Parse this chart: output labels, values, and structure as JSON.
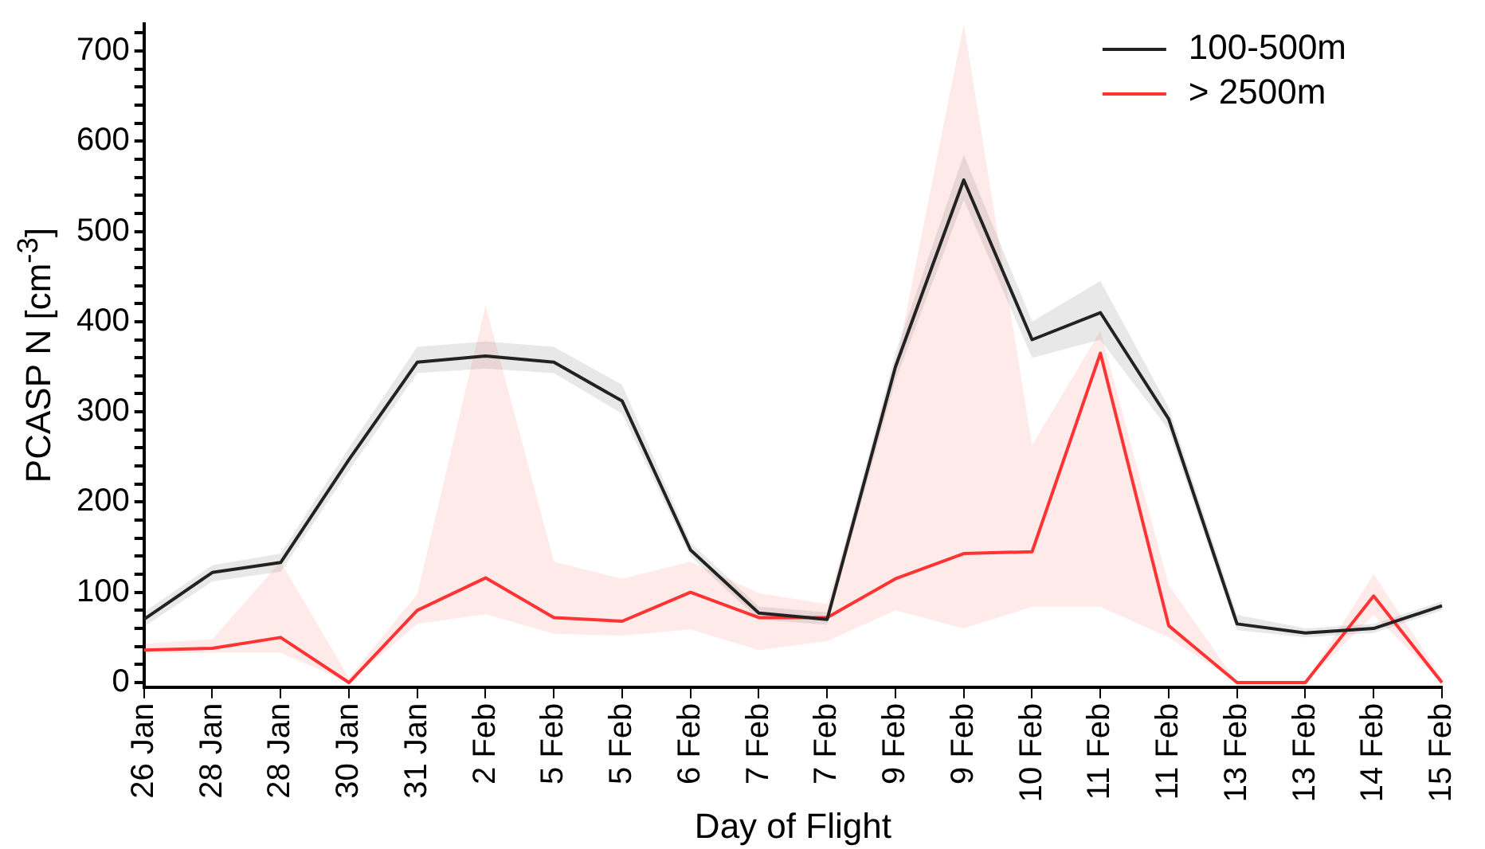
{
  "chart_data": {
    "type": "line",
    "xlabel": "Day of Flight",
    "ylabel": "PCASP N [cm$^{-3}$]",
    "categories": [
      "26 Jan",
      "28 Jan",
      "28 Jan",
      "30 Jan",
      "31 Jan",
      "2 Feb",
      "5 Feb",
      "5 Feb",
      "6 Feb",
      "7 Feb",
      "7 Feb",
      "9 Feb",
      "9 Feb",
      "10 Feb",
      "11 Feb",
      "11 Feb",
      "13 Feb",
      "13 Feb",
      "14 Feb",
      "15 Feb"
    ],
    "series": [
      {
        "name": "100-500m",
        "color": "#222222",
        "values": [
          70,
          122,
          133,
          247,
          355,
          362,
          355,
          312,
          147,
          77,
          70,
          350,
          557,
          380,
          410,
          292,
          65,
          55,
          60,
          85
        ],
        "lower": [
          62,
          112,
          123,
          235,
          343,
          348,
          343,
          298,
          140,
          70,
          64,
          335,
          535,
          360,
          380,
          280,
          58,
          50,
          55,
          80
        ],
        "upper": [
          78,
          130,
          143,
          260,
          372,
          378,
          372,
          330,
          155,
          84,
          78,
          365,
          585,
          400,
          445,
          305,
          75,
          60,
          65,
          90
        ]
      },
      {
        "name": "> 2500m",
        "color": "#ff3333",
        "values": [
          36,
          38,
          50,
          0,
          80,
          116,
          72,
          68,
          100,
          72,
          72,
          115,
          143,
          145,
          365,
          63,
          0,
          0,
          96,
          0
        ],
        "lower": [
          32,
          33,
          33,
          0,
          65,
          76,
          54,
          52,
          59,
          36,
          46,
          80,
          60,
          84,
          84,
          50,
          0,
          0,
          75,
          0
        ],
        "upper": [
          43,
          48,
          134,
          5,
          98,
          418,
          134,
          115,
          134,
          99,
          87,
          350,
          730,
          263,
          390,
          108,
          0,
          0,
          120,
          5
        ]
      }
    ],
    "ylim": [
      -5,
      730
    ],
    "yticks": [
      0,
      {
        "value": 20,
        "label": null
      },
      {
        "value": 40,
        "label": null
      },
      {
        "value": 60,
        "label": null
      },
      {
        "value": 80,
        "label": null
      },
      100,
      {
        "value": 120,
        "label": null
      },
      {
        "value": 140,
        "label": null
      },
      {
        "value": 160,
        "label": null
      },
      {
        "value": 180,
        "label": null
      },
      200,
      {
        "value": 220,
        "label": null
      },
      {
        "value": 240,
        "label": null
      },
      {
        "value": 260,
        "label": null
      },
      {
        "value": 280,
        "label": null
      },
      300,
      {
        "value": 320,
        "label": null
      },
      {
        "value": 340,
        "label": null
      },
      {
        "value": 360,
        "label": null
      },
      {
        "value": 380,
        "label": null
      },
      400,
      {
        "value": 420,
        "label": null
      },
      {
        "value": 440,
        "label": null
      },
      {
        "value": 460,
        "label": null
      },
      {
        "value": 480,
        "label": null
      },
      500,
      {
        "value": 520,
        "label": null
      },
      {
        "value": 540,
        "label": null
      },
      {
        "value": 560,
        "label": null
      },
      {
        "value": 580,
        "label": null
      },
      600,
      {
        "value": 620,
        "label": null
      },
      {
        "value": 640,
        "label": null
      },
      {
        "value": 660,
        "label": null
      },
      {
        "value": 680,
        "label": null
      },
      700,
      {
        "value": 720,
        "label": null
      }
    ],
    "legend": "top right",
    "grid": false,
    "marker": "none",
    "line_style": "solid"
  }
}
